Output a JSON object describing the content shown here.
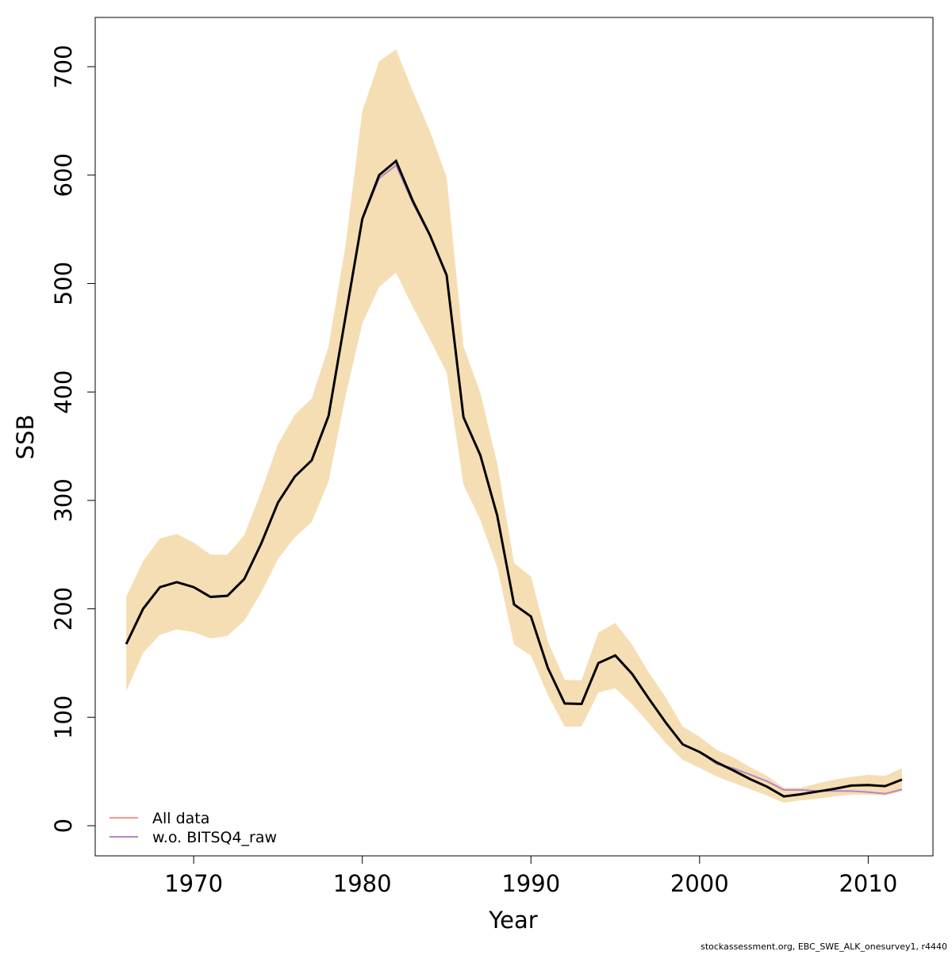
{
  "chart_data": {
    "type": "line",
    "xlabel": "Year",
    "ylabel": "SSB",
    "footnote": "stockassessment.org, EBC_SWE_ALK_onesurvey1, r4440",
    "x": [
      1966,
      1967,
      1968,
      1969,
      1970,
      1971,
      1972,
      1973,
      1974,
      1975,
      1976,
      1977,
      1978,
      1979,
      1980,
      1981,
      1982,
      1983,
      1984,
      1985,
      1986,
      1987,
      1988,
      1989,
      1990,
      1991,
      1992,
      1993,
      1994,
      1995,
      1996,
      1997,
      1998,
      1999,
      2000,
      2001,
      2002,
      2003,
      2004,
      2005,
      2006,
      2007,
      2008,
      2009,
      2010,
      2011,
      2012
    ],
    "estimate": {
      "color": "#000000",
      "values": [
        167.5,
        200,
        220,
        224.6,
        220,
        211,
        212,
        227.5,
        260,
        298,
        322,
        337,
        378,
        469,
        559.6,
        600,
        613,
        576,
        545,
        507.7,
        376.7,
        341.6,
        286,
        204,
        193,
        145.6,
        112.7,
        112.3,
        150,
        157,
        140,
        117,
        95,
        75,
        68,
        58.5,
        51,
        43,
        36,
        27,
        29,
        31.5,
        34,
        37,
        37.5,
        36.5,
        42.5
      ]
    },
    "band": {
      "color": "#f5deb3",
      "upper": [
        211,
        244,
        265,
        269,
        261,
        250,
        250,
        268,
        308,
        352,
        379,
        394,
        442,
        535,
        659,
        705,
        716,
        677,
        641,
        598,
        442,
        399,
        334,
        242,
        230,
        170,
        134.6,
        134,
        178,
        187,
        167,
        141,
        118,
        91.4,
        82,
        70,
        63,
        54,
        46,
        35,
        35,
        39,
        42.5,
        45,
        47,
        46,
        53
      ],
      "lower": [
        124,
        159.5,
        176,
        181,
        178.5,
        172.6,
        175,
        189,
        215,
        246,
        266,
        280,
        317.5,
        396,
        463,
        497,
        510,
        478,
        449,
        418,
        314.5,
        282,
        238.5,
        167,
        157,
        120.7,
        91.4,
        91.4,
        123,
        126.6,
        112,
        94.4,
        76,
        60.7,
        53.4,
        45.4,
        39.5,
        33.7,
        27.8,
        21.2,
        23.4,
        25,
        27,
        28.5,
        28.5,
        27.8,
        31.5
      ]
    },
    "series": [
      {
        "name": "All data",
        "color": "#f4978e",
        "values": [
          167.5,
          200,
          220,
          224.6,
          220,
          211,
          212,
          227.5,
          260,
          298,
          322,
          337,
          378,
          469,
          559.6,
          600,
          613,
          576,
          545,
          507.7,
          376.7,
          341.6,
          286,
          204,
          193,
          145.6,
          112.7,
          112.3,
          150,
          157,
          140,
          117,
          95,
          75,
          68,
          58.5,
          51,
          43,
          36,
          27,
          29,
          31.5,
          34,
          37,
          37.5,
          36.5,
          42.5
        ]
      },
      {
        "name": "w.o. BITSQ4_raw",
        "color": "#b784c8",
        "values": [
          167.5,
          200,
          220,
          224.6,
          220,
          211,
          212,
          227.5,
          260,
          298,
          322,
          337,
          378,
          469,
          559.6,
          597,
          609,
          574,
          544,
          507.7,
          376.7,
          341.6,
          286,
          204,
          193,
          145.6,
          112.7,
          112.3,
          150,
          157,
          140,
          117,
          95,
          75,
          68,
          57,
          53,
          47,
          41,
          33,
          33,
          32,
          32,
          32,
          31,
          29.5,
          33.5
        ]
      }
    ],
    "xlim": [
      1964.16,
      2013.84
    ],
    "xticks": [
      1970,
      1980,
      1990,
      2000,
      2010
    ],
    "ylim": [
      -27.8,
      745.4
    ],
    "yticks": [
      0,
      100,
      200,
      300,
      400,
      500,
      600,
      700
    ],
    "legend": "bottom-left"
  }
}
